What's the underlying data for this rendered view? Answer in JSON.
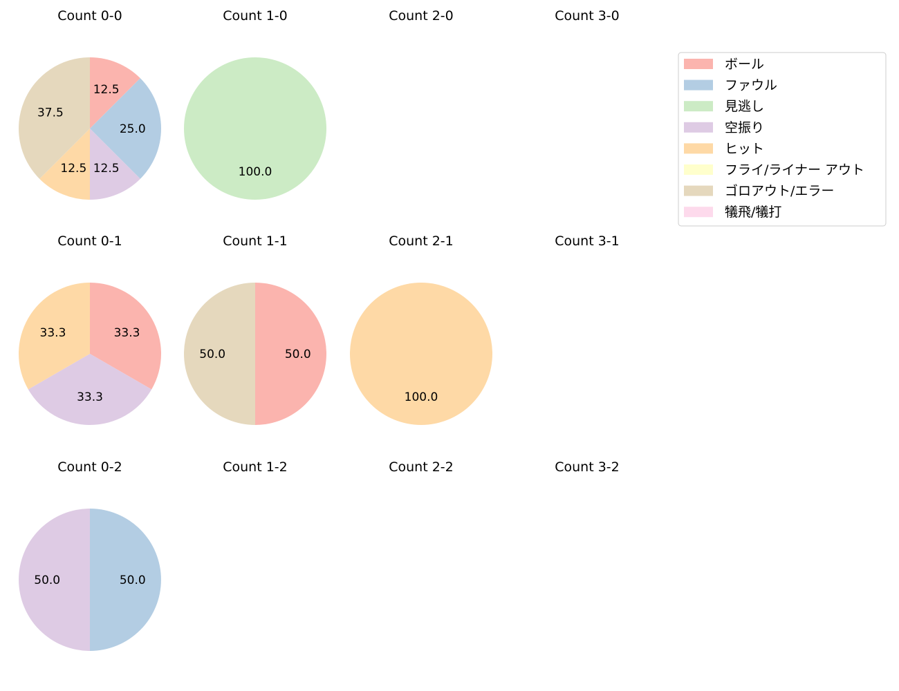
{
  "legend": {
    "items": [
      {
        "label": "ボール",
        "color": "#fbb4ae"
      },
      {
        "label": "ファウル",
        "color": "#b3cde3"
      },
      {
        "label": "見逃し",
        "color": "#ccebc5"
      },
      {
        "label": "空振り",
        "color": "#decbe4"
      },
      {
        "label": "ヒット",
        "color": "#fed9a6"
      },
      {
        "label": "フライ/ライナー アウト",
        "color": "#ffffcc"
      },
      {
        "label": "ゴロアウト/エラー",
        "color": "#e5d8bd"
      },
      {
        "label": "犠飛/犠打",
        "color": "#fddaec"
      }
    ]
  },
  "chart_data": [
    {
      "type": "pie",
      "title": "Count 0-0",
      "row": 0,
      "col": 0,
      "slices": [
        {
          "category": "ボール",
          "value": 12.5
        },
        {
          "category": "ファウル",
          "value": 25.0
        },
        {
          "category": "空振り",
          "value": 12.5
        },
        {
          "category": "ヒット",
          "value": 12.5
        },
        {
          "category": "ゴロアウト/エラー",
          "value": 37.5
        }
      ]
    },
    {
      "type": "pie",
      "title": "Count 1-0",
      "row": 0,
      "col": 1,
      "slices": [
        {
          "category": "見逃し",
          "value": 100.0
        }
      ]
    },
    {
      "type": "pie",
      "title": "Count 2-0",
      "row": 0,
      "col": 2,
      "slices": []
    },
    {
      "type": "pie",
      "title": "Count 3-0",
      "row": 0,
      "col": 3,
      "slices": []
    },
    {
      "type": "pie",
      "title": "Count 0-1",
      "row": 1,
      "col": 0,
      "slices": [
        {
          "category": "ボール",
          "value": 33.3
        },
        {
          "category": "空振り",
          "value": 33.3
        },
        {
          "category": "ヒット",
          "value": 33.3
        }
      ]
    },
    {
      "type": "pie",
      "title": "Count 1-1",
      "row": 1,
      "col": 1,
      "slices": [
        {
          "category": "ボール",
          "value": 50.0
        },
        {
          "category": "ゴロアウト/エラー",
          "value": 50.0
        }
      ]
    },
    {
      "type": "pie",
      "title": "Count 2-1",
      "row": 1,
      "col": 2,
      "slices": [
        {
          "category": "ヒット",
          "value": 100.0
        }
      ]
    },
    {
      "type": "pie",
      "title": "Count 3-1",
      "row": 1,
      "col": 3,
      "slices": []
    },
    {
      "type": "pie",
      "title": "Count 0-2",
      "row": 2,
      "col": 0,
      "slices": [
        {
          "category": "ファウル",
          "value": 50.0
        },
        {
          "category": "空振り",
          "value": 50.0
        }
      ]
    },
    {
      "type": "pie",
      "title": "Count 1-2",
      "row": 2,
      "col": 1,
      "slices": []
    },
    {
      "type": "pie",
      "title": "Count 2-2",
      "row": 2,
      "col": 2,
      "slices": []
    },
    {
      "type": "pie",
      "title": "Count 3-2",
      "row": 2,
      "col": 3,
      "slices": []
    }
  ]
}
